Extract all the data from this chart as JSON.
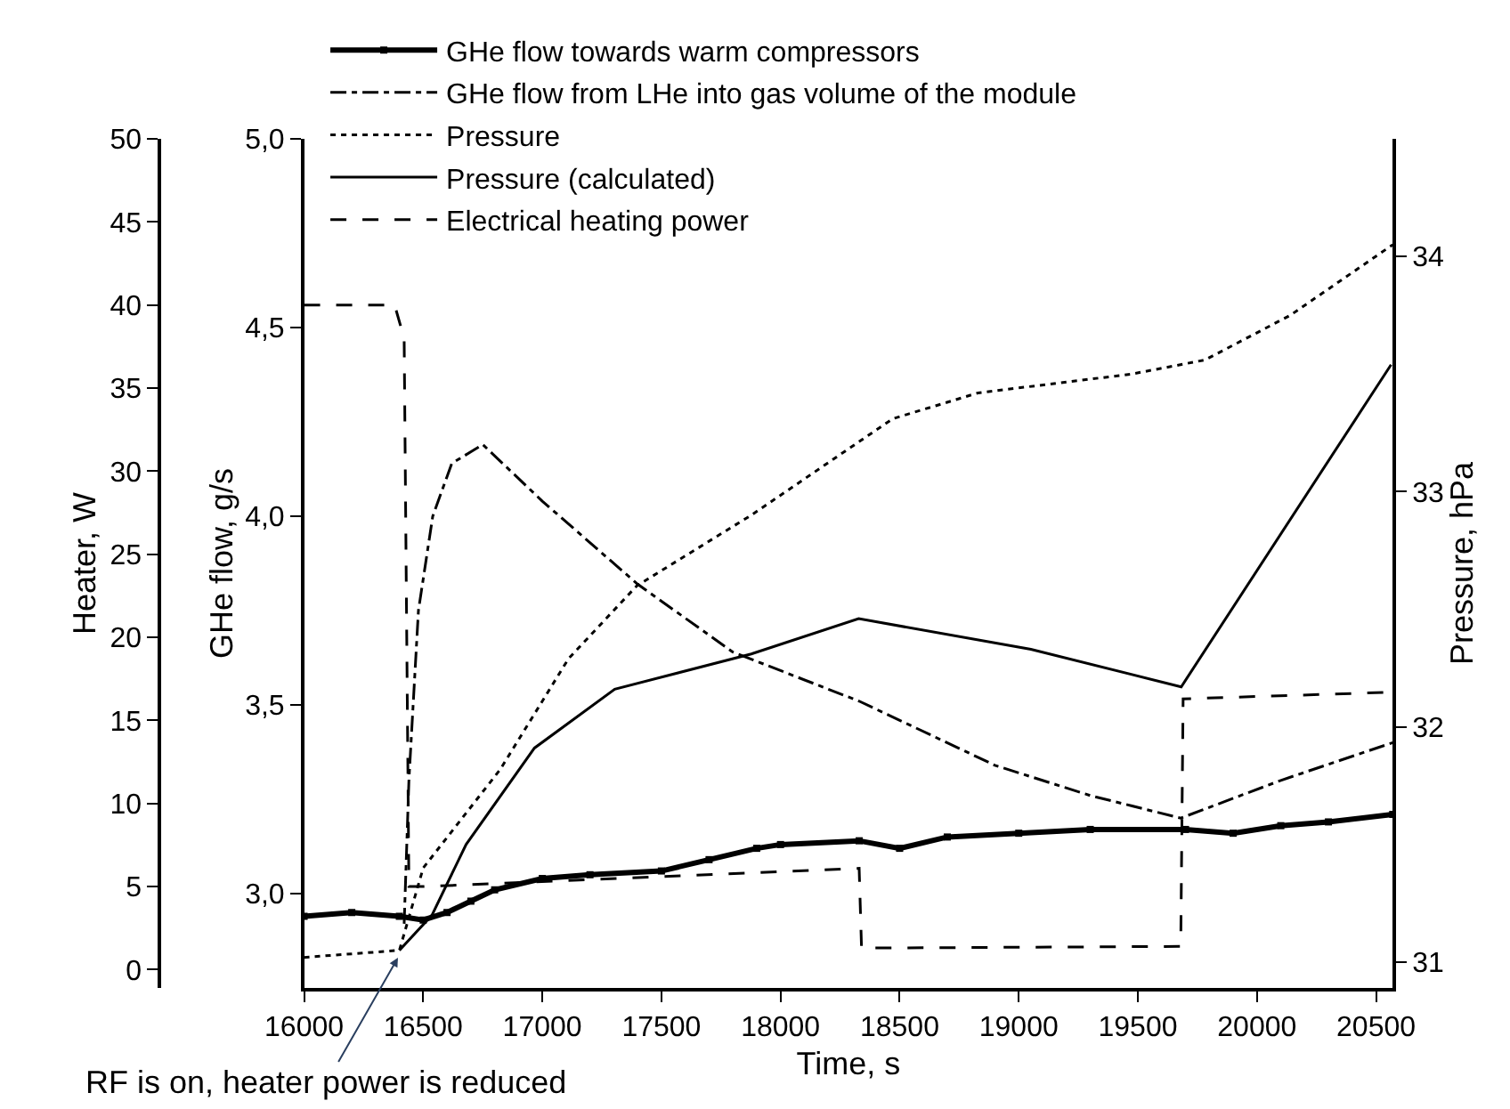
{
  "chart_data": {
    "type": "line",
    "xlabel": "Time, s",
    "ylabel": "GHe flow, g/s",
    "y2label": "Pressure, hPa",
    "y3label": "Heater, W",
    "xlim": [
      16000,
      20570
    ],
    "xticks": [
      16000,
      16500,
      17000,
      17500,
      18000,
      18500,
      19000,
      19500,
      20000,
      20500
    ],
    "ylim": [
      2.75,
      5.0
    ],
    "yticks": [
      {
        "value": 3.0,
        "label": "3,0"
      },
      {
        "value": 3.5,
        "label": "3,5"
      },
      {
        "value": 4.0,
        "label": "4,0"
      },
      {
        "value": 4.5,
        "label": "4,5"
      },
      {
        "value": 5.0,
        "label": "5,0"
      }
    ],
    "y2lim": [
      30.89,
      34.5
    ],
    "y2ticks": [
      31,
      32,
      33,
      34
    ],
    "y3lim": [
      -1.1,
      50
    ],
    "y3ticks": [
      0,
      5,
      10,
      15,
      20,
      25,
      30,
      35,
      40,
      45,
      50
    ],
    "legend": "top left",
    "annotations": [
      {
        "text": "RF is on, heater power is reduced",
        "x": 16394,
        "y": 2.83
      }
    ],
    "series": [
      {
        "name": "GHe flow towards warm compressors",
        "color": "#000000",
        "marker": "square",
        "line_style": "solid",
        "x": [
          16000,
          16200,
          16400,
          16500,
          16600,
          16700,
          16800,
          17000,
          17200,
          17500,
          17700,
          17900,
          18000,
          18330,
          18500,
          18700,
          19000,
          19300,
          19700,
          19900,
          20100,
          20300,
          20570
        ],
        "values": [
          2.94,
          2.95,
          2.94,
          2.93,
          2.95,
          2.98,
          3.01,
          3.04,
          3.05,
          3.06,
          3.09,
          3.12,
          3.13,
          3.14,
          3.12,
          3.15,
          3.16,
          3.17,
          3.17,
          3.16,
          3.18,
          3.19,
          3.21
        ]
      },
      {
        "name": "GHe flow from LHe into gas volume of the module",
        "color": "#000000",
        "marker": "none",
        "line_style": "dashdot",
        "x": [
          16420,
          16440,
          16480,
          16540,
          16620,
          16750,
          17000,
          17400,
          17800,
          18330,
          18900,
          19300,
          19680,
          20100,
          20570
        ],
        "values": [
          2.92,
          3.3,
          3.75,
          4.0,
          4.14,
          4.19,
          4.04,
          3.82,
          3.64,
          3.51,
          3.34,
          3.26,
          3.2,
          3.3,
          3.4
        ]
      },
      {
        "name": "Pressure",
        "color": "#000000",
        "marker": "none",
        "line_style": "dotted",
        "axis": "y2",
        "x": [
          16000,
          16400,
          16500,
          16824,
          17110,
          17397,
          17877,
          18471,
          18830,
          19474,
          19782,
          20140,
          20570
        ],
        "values": [
          31.02,
          31.05,
          31.4,
          31.82,
          32.29,
          32.6,
          32.9,
          33.31,
          33.42,
          33.5,
          33.56,
          33.75,
          34.05
        ]
      },
      {
        "name": "Pressure (calculated)",
        "color": "#000000",
        "marker": "none",
        "line_style": "solid",
        "axis": "y2",
        "x": [
          16400,
          16537,
          16680,
          16967,
          17304,
          17877,
          18328,
          19051,
          19682,
          20563
        ],
        "values": [
          31.05,
          31.2,
          31.5,
          31.91,
          32.16,
          32.31,
          32.46,
          32.33,
          32.17,
          33.54
        ]
      },
      {
        "name": "Electrical heating power",
        "color": "#000000",
        "marker": "none",
        "line_style": "dashed",
        "axis": "y3",
        "x": [
          16000,
          16380,
          16420,
          16440,
          16500,
          18330,
          18340,
          19680,
          19690,
          20570
        ],
        "values": [
          40,
          40,
          38,
          5,
          5.0,
          6.1,
          1.3,
          1.4,
          16.3,
          16.7
        ]
      }
    ]
  }
}
